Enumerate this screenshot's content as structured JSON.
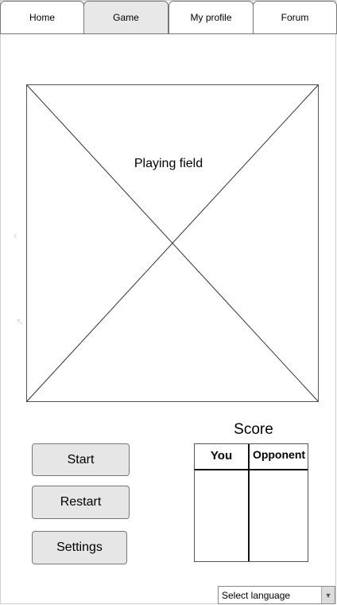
{
  "tabs": {
    "home": "Home",
    "game": "Game",
    "profile": "My profile",
    "forum": "Forum"
  },
  "field": {
    "label": "Playing field"
  },
  "buttons": {
    "start": "Start",
    "restart": "Restart",
    "settings": "Settings"
  },
  "score": {
    "title": "Score",
    "col_you": "You",
    "col_opponent": "Opponent"
  },
  "language": {
    "selected": "Select language"
  },
  "icons": {
    "left": "chevron-left-icon",
    "diag": "arrow-up-left-icon",
    "dropdown": "chevron-down-icon"
  }
}
